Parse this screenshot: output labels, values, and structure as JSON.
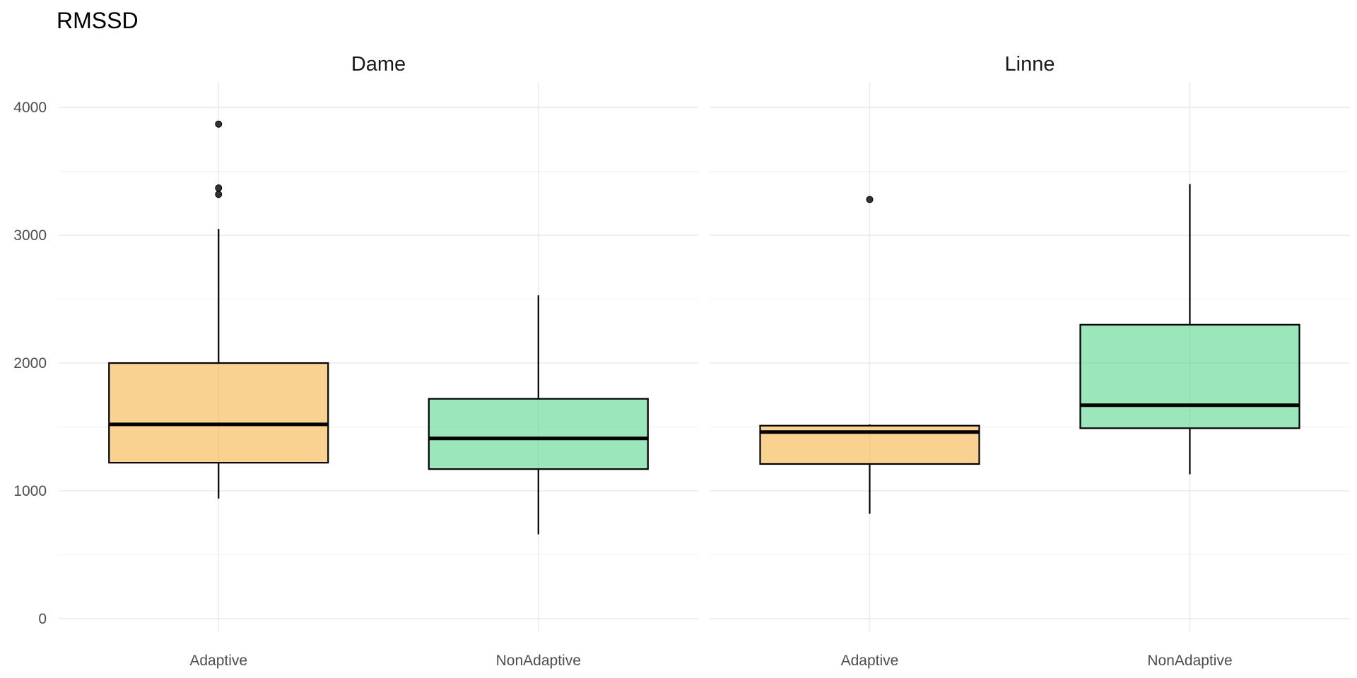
{
  "chart_data": {
    "type": "boxplot",
    "title": "RMSSD",
    "xlabel": "",
    "ylabel": "",
    "ylim": [
      -100,
      4200
    ],
    "y_ticks": [
      0,
      1000,
      2000,
      3000,
      4000
    ],
    "y_minor_ticks": [
      500,
      1500,
      2500,
      3500
    ],
    "grid": true,
    "categories": [
      "Adaptive",
      "NonAdaptive"
    ],
    "fill_colors": {
      "Adaptive": "#f5b74d",
      "NonAdaptive": "#5fd692"
    },
    "fill_opacity": 0.62,
    "panels": [
      {
        "label": "Dame",
        "boxes": [
          {
            "category": "Adaptive",
            "whisker_low": 940,
            "q1": 1220,
            "median": 1520,
            "q3": 2000,
            "whisker_high": 3050,
            "outliers": [
              3320,
              3370,
              3870
            ]
          },
          {
            "category": "NonAdaptive",
            "whisker_low": 660,
            "q1": 1170,
            "median": 1410,
            "q3": 1720,
            "whisker_high": 2530,
            "outliers": []
          }
        ]
      },
      {
        "label": "Linne",
        "boxes": [
          {
            "category": "Adaptive",
            "whisker_low": 820,
            "q1": 1210,
            "median": 1460,
            "q3": 1510,
            "whisker_high": 1520,
            "outliers": [
              3280
            ]
          },
          {
            "category": "NonAdaptive",
            "whisker_low": 1130,
            "q1": 1490,
            "median": 1670,
            "q3": 2300,
            "whisker_high": 3400,
            "outliers": []
          }
        ]
      }
    ]
  }
}
